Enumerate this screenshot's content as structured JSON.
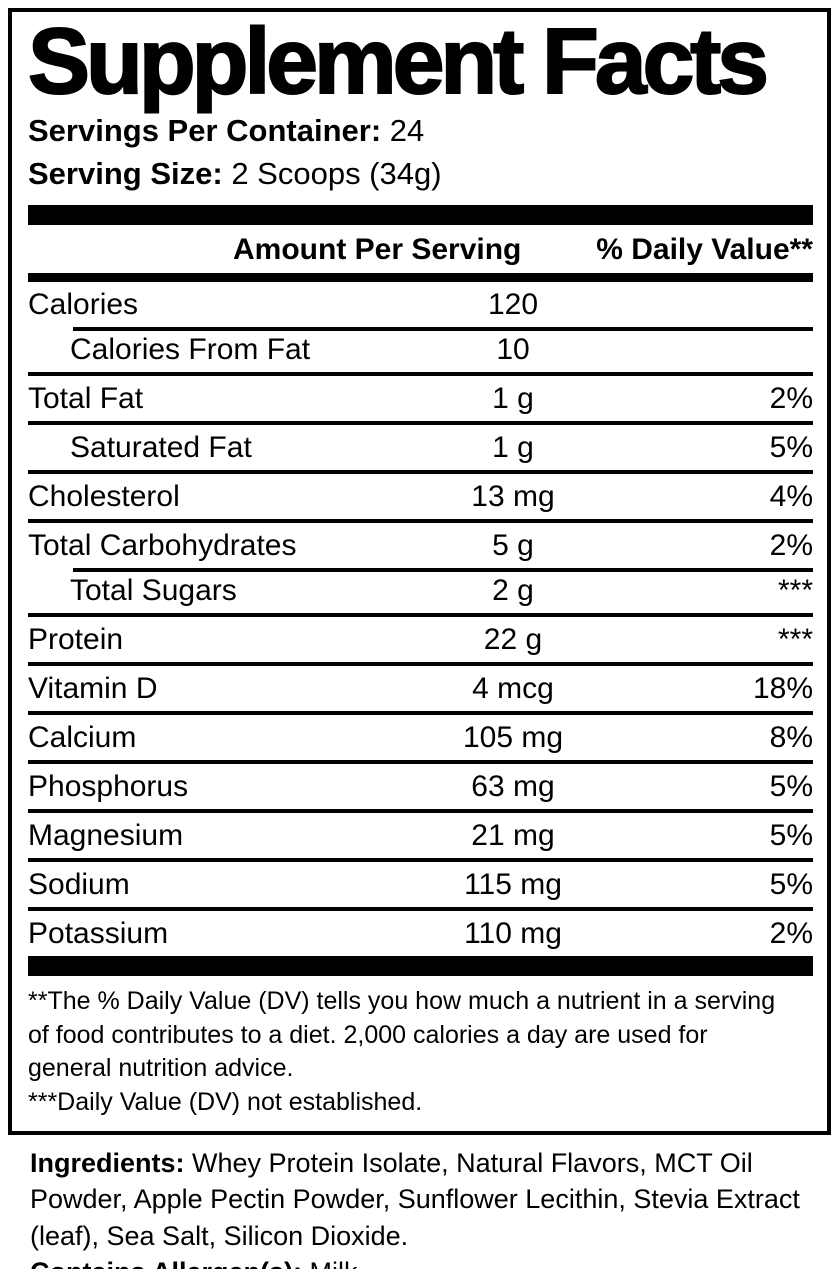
{
  "panel": {
    "title": "Supplement Facts",
    "serving_info": [
      {
        "label": "Servings Per Container:",
        "value": "24"
      },
      {
        "label": "Serving Size:",
        "value": "2 Scoops (34g)"
      }
    ],
    "columns": {
      "amount": "Amount Per Serving",
      "daily_value": "% Daily Value**"
    },
    "rows": [
      {
        "name": "Calories",
        "amount": "120",
        "dv": "",
        "indent": false,
        "sep": "none"
      },
      {
        "name": "Calories From Fat",
        "amount": "10",
        "dv": "",
        "indent": true,
        "sep": "indented"
      },
      {
        "name": "Total Fat",
        "amount": "1 g",
        "dv": "2%",
        "indent": false,
        "sep": "full"
      },
      {
        "name": "Saturated Fat",
        "amount": "1 g",
        "dv": "5%",
        "indent": true,
        "sep": "full"
      },
      {
        "name": "Cholesterol",
        "amount": "13 mg",
        "dv": "4%",
        "indent": false,
        "sep": "full"
      },
      {
        "name": "Total Carbohydrates",
        "amount": "5 g",
        "dv": "2%",
        "indent": false,
        "sep": "full"
      },
      {
        "name": "Total Sugars",
        "amount": "2 g",
        "dv": "***",
        "indent": true,
        "sep": "indented"
      },
      {
        "name": "Protein",
        "amount": "22 g",
        "dv": "***",
        "indent": false,
        "sep": "full"
      },
      {
        "name": "Vitamin D",
        "amount": "4 mcg",
        "dv": "18%",
        "indent": false,
        "sep": "full"
      },
      {
        "name": "Calcium",
        "amount": "105 mg",
        "dv": "8%",
        "indent": false,
        "sep": "full"
      },
      {
        "name": "Phosphorus",
        "amount": "63 mg",
        "dv": "5%",
        "indent": false,
        "sep": "full"
      },
      {
        "name": "Magnesium",
        "amount": "21 mg",
        "dv": "5%",
        "indent": false,
        "sep": "full"
      },
      {
        "name": "Sodium",
        "amount": "115 mg",
        "dv": "5%",
        "indent": false,
        "sep": "full"
      },
      {
        "name": "Potassium",
        "amount": "110 mg",
        "dv": "2%",
        "indent": false,
        "sep": "full"
      }
    ],
    "footnotes": [
      "**The % Daily Value (DV) tells you how much a nutrient in a serving of food contributes to a diet. 2,000 calories a day are used for general nutrition advice.",
      "***Daily Value (DV) not established."
    ]
  },
  "ingredients": {
    "label": "Ingredients:",
    "text": "Whey Protein Isolate, Natural Flavors, MCT Oil Powder, Apple Pectin Powder, Sunflower Lecithin, Stevia Extract (leaf), Sea Salt, Silicon Dioxide.",
    "allergen_label": "Contains Allergen(s):",
    "allergen_value": "Milk"
  },
  "colors": {
    "text": "#000000",
    "background": "#ffffff"
  }
}
